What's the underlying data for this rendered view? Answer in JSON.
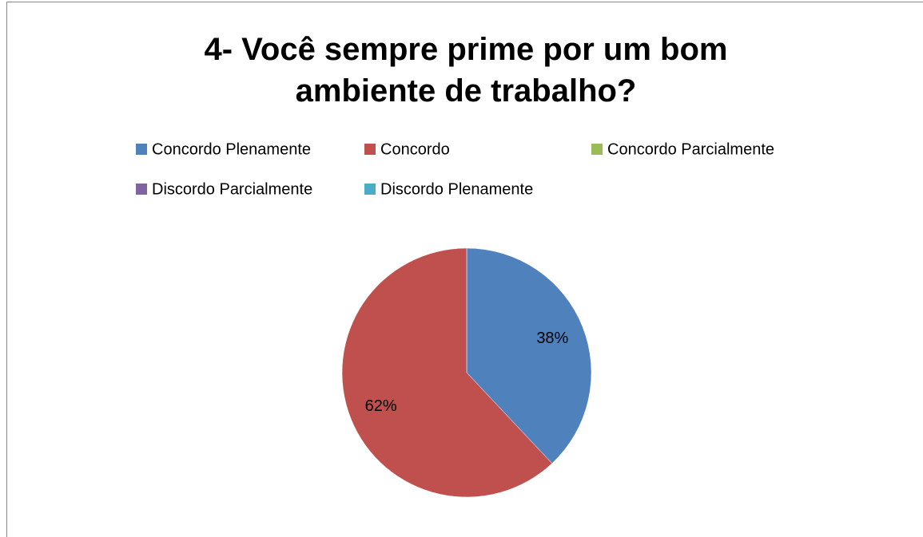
{
  "chart_data": {
    "type": "pie",
    "title": "4- Você sempre prime por um bom ambiente de trabalho?",
    "categories": [
      "Concordo Plenamente",
      "Concordo",
      "Concordo Parcialmente",
      "Discordo Parcialmente",
      "Discordo Plenamente"
    ],
    "values": [
      38,
      62,
      0,
      0,
      0
    ],
    "value_labels": [
      "38%",
      "62%",
      null,
      null,
      null
    ],
    "colors": [
      "#4f81bd",
      "#c0504d",
      "#9bbb59",
      "#8064a2",
      "#4bacc6"
    ],
    "legend": "top"
  }
}
